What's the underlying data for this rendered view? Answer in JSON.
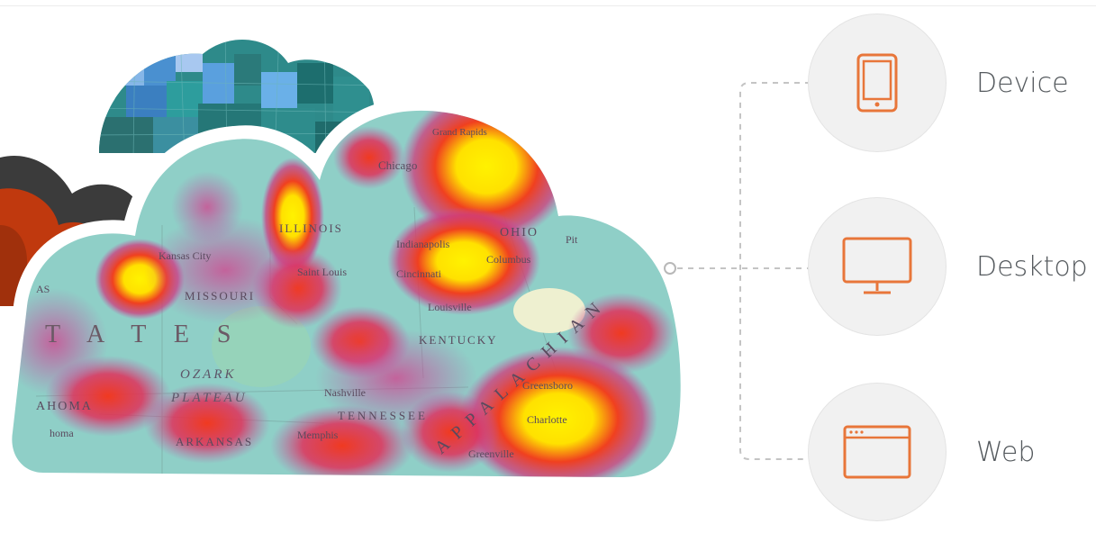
{
  "map": {
    "labels": {
      "chicago": "Chicago",
      "grand_rapids": "Grand Rapids",
      "illinois": "ILLINOIS",
      "ohio": "OHIO",
      "indianapolis": "Indianapolis",
      "columbus": "Columbus",
      "cincinnati": "Cincinnati",
      "pittsburgh": "Pit",
      "kansas_city": "Kansas City",
      "missouri": "MISSOURI",
      "st_louis": "Saint Louis",
      "louisville": "Louisville",
      "kentucky": "KENTUCKY",
      "states_fragment": "T A T E S",
      "as_fragment": "AS",
      "ozark": "OZARK",
      "plateau": "PLATEAU",
      "oklahoma": "AHOMA",
      "tulsa": "homa",
      "arkansas": "ARKANSAS",
      "memphis": "Memphis",
      "nashville": "Nashville",
      "tennessee": "TENNESSEE",
      "appalachian": "APPALACHIAN",
      "greensboro": "Greensboro",
      "charlotte": "Charlotte",
      "greenville": "Greenville"
    },
    "colors": {
      "water": "#8fcfc7",
      "heat_low": "#c040a0",
      "heat_mid": "#e8301e",
      "heat_high": "#fff200"
    }
  },
  "platforms": [
    {
      "label": "Device",
      "icon": "tablet-icon"
    },
    {
      "label": "Desktop",
      "icon": "monitor-icon"
    },
    {
      "label": "Web",
      "icon": "browser-window-icon"
    }
  ],
  "accent_color": "#e8763a"
}
